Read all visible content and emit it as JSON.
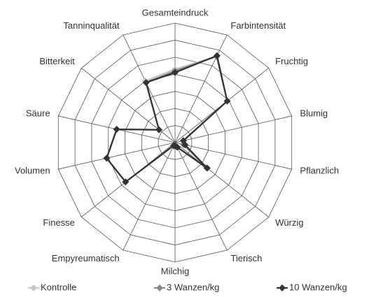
{
  "chart_data": {
    "type": "radar",
    "categories": [
      "Gesamteindruck",
      "Farbintensität",
      "Fruchtig",
      "Blumig",
      "Pflanzlich",
      "Würzig",
      "Tierisch",
      "Milchig",
      "Empyreumatisch",
      "Finesse",
      "Volumen",
      "Säure",
      "Bitterkeit",
      "Tanninqualität"
    ],
    "rlim": [
      0,
      7
    ],
    "rticks": [
      1,
      2,
      3,
      4,
      5,
      6,
      7
    ],
    "grid": true,
    "legend": "bottom",
    "series": [
      {
        "name": "Kontrolle",
        "color": "#c8c8c8",
        "values": [
          4.3,
          5.6,
          3.9,
          0.5,
          0.5,
          2.3,
          0.3,
          0.2,
          0.2,
          3.7,
          4.1,
          3.5,
          1.2,
          4.0
        ]
      },
      {
        "name": "3 Wanzen/kg",
        "color": "#888888",
        "values": [
          4.2,
          5.6,
          3.9,
          0.5,
          0.5,
          2.4,
          0.3,
          0.2,
          0.2,
          3.7,
          4.1,
          3.5,
          1.2,
          3.9
        ]
      },
      {
        "name": "10 Wanzen/kg",
        "color": "#333333",
        "values": [
          4.1,
          5.65,
          3.9,
          0.5,
          0.6,
          2.4,
          0.3,
          0.2,
          0.2,
          3.7,
          4.1,
          3.5,
          1.2,
          3.9
        ]
      }
    ]
  }
}
